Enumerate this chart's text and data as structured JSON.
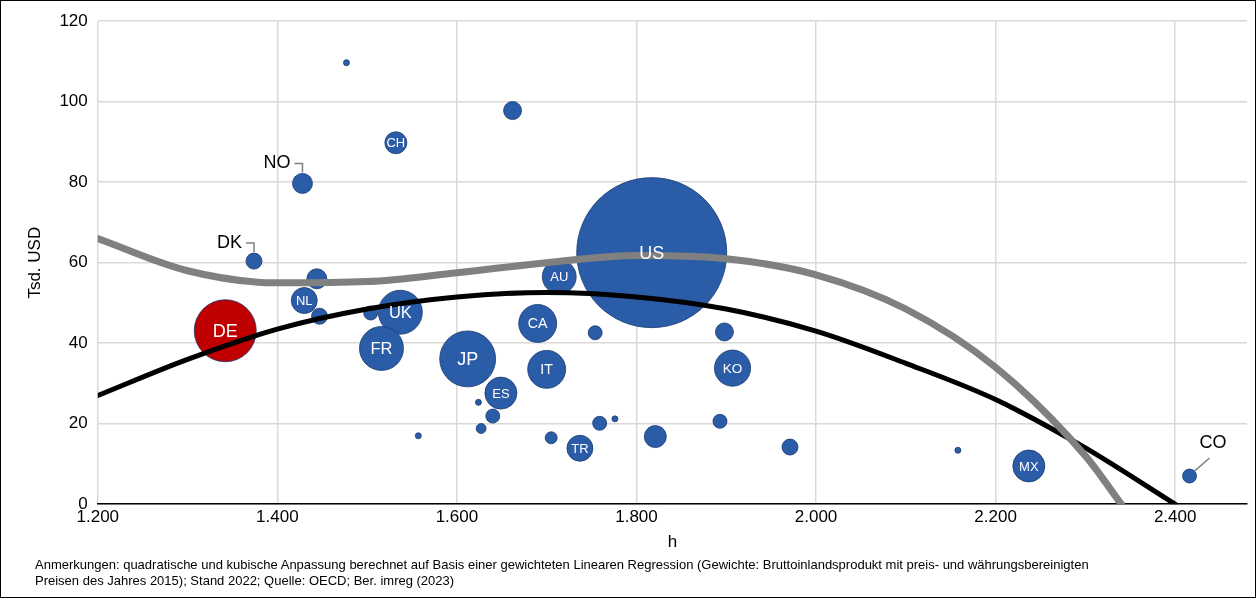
{
  "chart_data": {
    "type": "bubble",
    "xlabel": "h",
    "ylabel": "Tsd. USD",
    "xlim": [
      1200,
      2480
    ],
    "ylim": [
      0,
      120
    ],
    "xticks": [
      {
        "value": 1200,
        "label": "1.200"
      },
      {
        "value": 1400,
        "label": "1.400"
      },
      {
        "value": 1600,
        "label": "1.600"
      },
      {
        "value": 1800,
        "label": "1.800"
      },
      {
        "value": 2000,
        "label": "2.000"
      },
      {
        "value": 2200,
        "label": "2.200"
      },
      {
        "value": 2400,
        "label": "2.400"
      }
    ],
    "yticks": [
      0,
      20,
      40,
      60,
      80,
      100,
      120
    ],
    "grid": true,
    "legend": false,
    "series": [
      {
        "x": [
          1477,
          1662,
          1532,
          1428,
          1374,
          1444,
          1714,
          1817,
          1430,
          1447,
          1504,
          1537,
          1342,
          1516,
          1690,
          1754,
          1898,
          1612,
          1700,
          1907,
          1649,
          1624,
          1640,
          1627,
          1557,
          1705,
          1759,
          1776,
          1737,
          1821,
          1893,
          1971,
          2158,
          2237,
          2416
        ],
        "values": [
          109.7,
          97.8,
          89.8,
          79.7,
          60.4,
          56,
          56.5,
          62.5,
          50.6,
          46.7,
          47.5,
          47.7,
          43.1,
          38.7,
          44.9,
          42.6,
          42.8,
          36.1,
          33.5,
          33.8,
          27.6,
          25.3,
          21.9,
          18.8,
          17,
          16.5,
          20.1,
          21.2,
          13.9,
          16.8,
          20.6,
          14.2,
          13.4,
          9.5,
          7
        ],
        "sizes": [
          0.0016,
          0.0144,
          0.0215,
          0.0178,
          0.0114,
          0.0178,
          0.051,
          1,
          0.03,
          0.0114,
          0.0087,
          0.086,
          0.171,
          0.086,
          0.064,
          0.0087,
          0.0144,
          0.139,
          0.064,
          0.058,
          0.0455,
          0.0016,
          0.0087,
          0.0044,
          0.0016,
          0.0064,
          0.0087,
          0.0016,
          0.03,
          0.0215,
          0.0087,
          0.0114,
          0.0016,
          0.0455,
          0.0087
        ],
        "colors": [
          "#2a5ca8",
          "#2a5ca8",
          "#2a5ca8",
          "#2a5ca8",
          "#2a5ca8",
          "#2a5ca8",
          "#2a5ca8",
          "#2a5ca8",
          "#2a5ca8",
          "#2a5ca8",
          "#2a5ca8",
          "#2a5ca8",
          "#c00000",
          "#2a5ca8",
          "#2a5ca8",
          "#2a5ca8",
          "#2a5ca8",
          "#2a5ca8",
          "#2a5ca8",
          "#2a5ca8",
          "#2a5ca8",
          "#2a5ca8",
          "#2a5ca8",
          "#2a5ca8",
          "#2a5ca8",
          "#2a5ca8",
          "#2a5ca8",
          "#2a5ca8",
          "#2a5ca8",
          "#2a5ca8",
          "#2a5ca8",
          "#2a5ca8",
          "#2a5ca8",
          "#2a5ca8",
          "#2a5ca8"
        ]
      },
      {
        "type": "line",
        "color": "#808080",
        "x": [
          1200,
          1300,
          1400,
          1500,
          1600,
          1700,
          1800,
          1900,
          2000,
          2100,
          2200,
          2300,
          2340
        ],
        "values": [
          66,
          58,
          55,
          55.3,
          57.5,
          60,
          61.8,
          61,
          57,
          48.5,
          34,
          12,
          0
        ]
      },
      {
        "type": "line",
        "color": "#000000",
        "x": [
          1200,
          1300,
          1400,
          1500,
          1600,
          1700,
          1800,
          1900,
          2000,
          2100,
          2200,
          2300,
          2400
        ],
        "values": [
          27,
          36,
          43.5,
          48.5,
          51.5,
          52.6,
          51.5,
          48.5,
          43,
          35,
          26,
          14,
          0
        ]
      }
    ],
    "annotations": [
      {
        "text": "CH",
        "x": 1532,
        "y": 89.8
      },
      {
        "text": "NO",
        "x": 1428,
        "y": 79.7
      },
      {
        "text": "DK",
        "x": 1374,
        "y": 60.4
      },
      {
        "text": "AU",
        "x": 1714,
        "y": 56.5
      },
      {
        "text": "US",
        "x": 1817,
        "y": 62.5
      },
      {
        "text": "NL",
        "x": 1430,
        "y": 50.6
      },
      {
        "text": "UK",
        "x": 1537,
        "y": 47.7
      },
      {
        "text": "DE",
        "x": 1342,
        "y": 43.1
      },
      {
        "text": "FR",
        "x": 1516,
        "y": 38.7
      },
      {
        "text": "CA",
        "x": 1690,
        "y": 44.9
      },
      {
        "text": "JP",
        "x": 1612,
        "y": 36.1
      },
      {
        "text": "IT",
        "x": 1700,
        "y": 33.5
      },
      {
        "text": "KO",
        "x": 1907,
        "y": 33.8
      },
      {
        "text": "ES",
        "x": 1649,
        "y": 27.6
      },
      {
        "text": "TR",
        "x": 1737,
        "y": 13.9
      },
      {
        "text": "MX",
        "x": 2237,
        "y": 9.5
      },
      {
        "text": "CO",
        "x": 2416,
        "y": 7
      },
      "Anmerkungen: quadratische und kubische Anpassung berechnet auf Basis einer gewichteten Linearen Regression (Gewichte: Bruttoinlandsprodukt mit preis- und währungsbereinigten Preisen des Jahres 2015); Stand 2022; Quelle: OECD; Ber. imreg (2023)"
    ]
  }
}
